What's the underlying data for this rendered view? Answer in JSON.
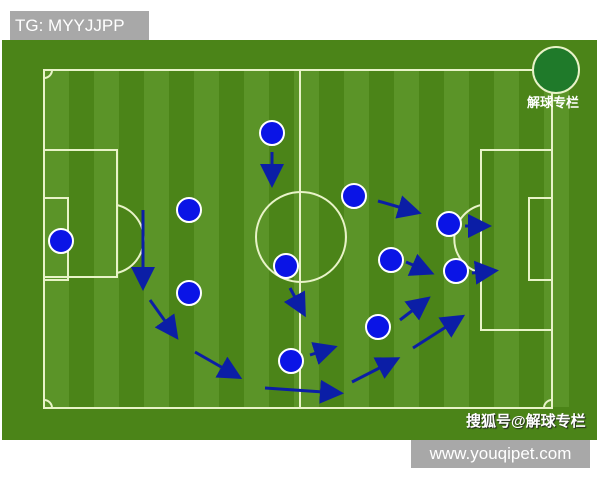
{
  "header": {
    "tag": "TG: MYYJJPP"
  },
  "logo": {
    "text": "解球专栏"
  },
  "watermark": "搜狐号@解球专栏",
  "footer": {
    "site": "www.youqipet.com"
  },
  "colors": {
    "pitch": "#4b8418",
    "stripe_light": "#5b9428",
    "lines": "#e8f3c8",
    "player": "#0a14e6",
    "arrow": "#0b1ea6"
  }
}
